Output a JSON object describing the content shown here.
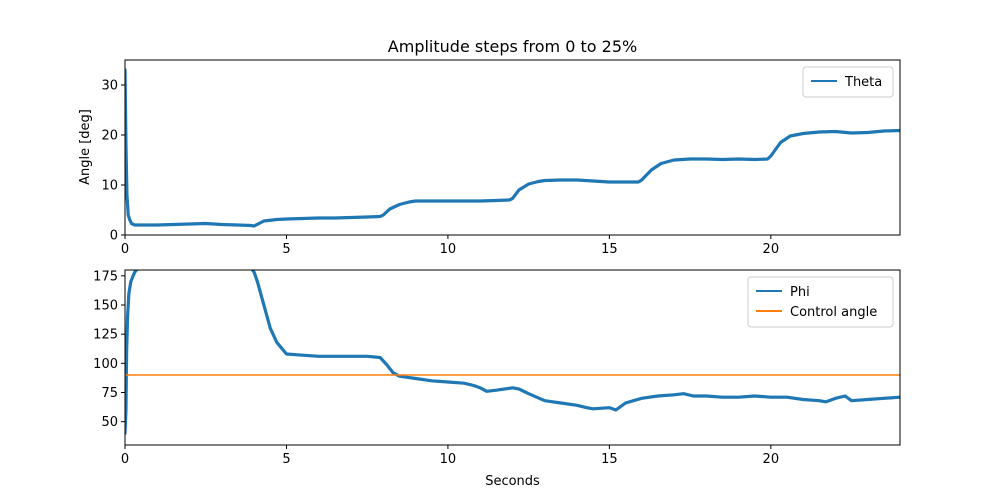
{
  "chart_data": [
    {
      "type": "line",
      "title": "Amplitude steps from 0 to 25%",
      "xlabel": "",
      "ylabel": "Angle [deg]",
      "xlim": [
        0,
        24
      ],
      "ylim": [
        0,
        35
      ],
      "xticks": [
        0,
        5,
        10,
        15,
        20
      ],
      "yticks": [
        0,
        10,
        20,
        30
      ],
      "legend_position": "top-right",
      "series": [
        {
          "name": "Theta",
          "color": "#1f77b4",
          "x": [
            0.0,
            0.03,
            0.06,
            0.1,
            0.15,
            0.2,
            0.3,
            0.5,
            1.0,
            1.5,
            2.0,
            2.5,
            3.0,
            3.5,
            3.9,
            4.0,
            4.3,
            4.7,
            5.0,
            5.5,
            6.0,
            6.5,
            7.0,
            7.5,
            7.9,
            8.0,
            8.2,
            8.5,
            8.8,
            9.0,
            9.5,
            10.0,
            10.5,
            11.0,
            11.5,
            11.9,
            12.0,
            12.2,
            12.5,
            12.8,
            13.0,
            13.5,
            14.0,
            14.5,
            15.0,
            15.5,
            15.9,
            16.0,
            16.3,
            16.6,
            17.0,
            17.5,
            18.0,
            18.5,
            19.0,
            19.5,
            19.9,
            20.0,
            20.3,
            20.6,
            21.0,
            21.5,
            22.0,
            22.5,
            23.0,
            23.5,
            24.0
          ],
          "y": [
            33,
            18,
            8,
            4,
            3,
            2.3,
            2,
            2,
            2,
            2.1,
            2.2,
            2.3,
            2.1,
            2.0,
            1.9,
            1.8,
            2.8,
            3.1,
            3.2,
            3.3,
            3.4,
            3.4,
            3.5,
            3.6,
            3.7,
            4.0,
            5.2,
            6.1,
            6.6,
            6.8,
            6.8,
            6.8,
            6.8,
            6.8,
            6.9,
            7.0,
            7.3,
            9.0,
            10.2,
            10.7,
            10.9,
            11.0,
            11.0,
            10.8,
            10.6,
            10.6,
            10.6,
            11.0,
            13.0,
            14.3,
            15.0,
            15.2,
            15.2,
            15.1,
            15.2,
            15.1,
            15.2,
            15.8,
            18.5,
            19.8,
            20.3,
            20.6,
            20.7,
            20.4,
            20.5,
            20.8,
            20.9
          ]
        }
      ]
    },
    {
      "type": "line",
      "title": "",
      "xlabel": "Seconds",
      "ylabel": "",
      "xlim": [
        0,
        24
      ],
      "ylim": [
        30,
        180
      ],
      "xticks": [
        0,
        5,
        10,
        15,
        20
      ],
      "yticks": [
        50,
        75,
        100,
        125,
        150,
        175
      ],
      "legend_position": "top-right",
      "series": [
        {
          "name": "Phi",
          "color": "#1f77b4",
          "x": [
            0.0,
            0.03,
            0.05,
            0.08,
            0.12,
            0.18,
            0.25,
            0.3,
            0.35,
            0.45,
            3.9,
            4.0,
            4.1,
            4.2,
            4.35,
            4.5,
            4.7,
            5.0,
            5.5,
            6.0,
            6.5,
            7.0,
            7.5,
            7.9,
            8.1,
            8.3,
            8.5,
            9.0,
            9.5,
            10.0,
            10.5,
            10.8,
            11.0,
            11.2,
            11.5,
            12.0,
            12.2,
            12.5,
            13.0,
            13.5,
            14.0,
            14.3,
            14.5,
            15.0,
            15.2,
            15.5,
            16.0,
            16.5,
            17.0,
            17.3,
            17.6,
            18.0,
            18.5,
            19.0,
            19.5,
            20.0,
            20.5,
            21.0,
            21.5,
            21.7,
            22.0,
            22.3,
            22.5,
            23.0,
            23.5,
            24.0
          ],
          "y": [
            40,
            60,
            110,
            140,
            160,
            170,
            175,
            178,
            180,
            182,
            182,
            178,
            170,
            160,
            145,
            130,
            118,
            108,
            107,
            106,
            106,
            106,
            106,
            105,
            99,
            92,
            89,
            87,
            85,
            84,
            83,
            81,
            79,
            76,
            77,
            79,
            78,
            74,
            68,
            66,
            64,
            62,
            61,
            62,
            60,
            66,
            70,
            72,
            73,
            74,
            72,
            72,
            71,
            71,
            72,
            71,
            71,
            69,
            68,
            67,
            70,
            72,
            68,
            69,
            70,
            71
          ]
        },
        {
          "name": "Control angle",
          "color": "#ff7f0e",
          "x": [
            0,
            24
          ],
          "y": [
            90,
            90
          ]
        }
      ]
    }
  ]
}
